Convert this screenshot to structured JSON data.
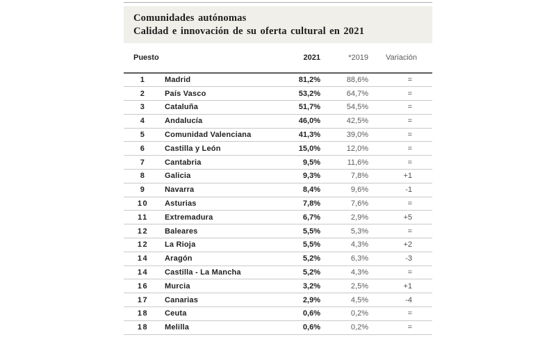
{
  "header": {
    "title_line1": "Comunidades autónomas",
    "title_line2": "Calidad e innovación de su oferta cultural en 2021"
  },
  "table": {
    "columns": {
      "puesto": "Puesto",
      "y2021": "2021",
      "y2019": "*2019",
      "variacion": "Variación"
    },
    "rows": [
      {
        "rank": "1",
        "name": "Madrid",
        "v2021": "81,2%",
        "v2019": "88,6%",
        "variation": "="
      },
      {
        "rank": "2",
        "name": "País Vasco",
        "v2021": "53,2%",
        "v2019": "64,7%",
        "variation": "="
      },
      {
        "rank": "3",
        "name": "Cataluña",
        "v2021": "51,7%",
        "v2019": "54,5%",
        "variation": "="
      },
      {
        "rank": "4",
        "name": "Andalucía",
        "v2021": "46,0%",
        "v2019": "42,5%",
        "variation": "="
      },
      {
        "rank": "5",
        "name": "Comunidad Valenciana",
        "v2021": "41,3%",
        "v2019": "39,0%",
        "variation": "="
      },
      {
        "rank": "6",
        "name": "Castilla y León",
        "v2021": "15,0%",
        "v2019": "12,0%",
        "variation": "="
      },
      {
        "rank": "7",
        "name": "Cantabria",
        "v2021": "9,5%",
        "v2019": "11,6%",
        "variation": "="
      },
      {
        "rank": "8",
        "name": "Galicia",
        "v2021": "9,3%",
        "v2019": "7,8%",
        "variation": "+1"
      },
      {
        "rank": "9",
        "name": "Navarra",
        "v2021": "8,4%",
        "v2019": "9,6%",
        "variation": "-1"
      },
      {
        "rank": "10",
        "name": "Asturias",
        "v2021": "7,8%",
        "v2019": "7,6%",
        "variation": "="
      },
      {
        "rank": "11",
        "name": "Extremadura",
        "v2021": "6,7%",
        "v2019": "2,9%",
        "variation": "+5"
      },
      {
        "rank": "12",
        "name": "Baleares",
        "v2021": "5,5%",
        "v2019": "5,3%",
        "variation": "="
      },
      {
        "rank": "12",
        "name": "La Rioja",
        "v2021": "5,5%",
        "v2019": "4,3%",
        "variation": "+2"
      },
      {
        "rank": "14",
        "name": "Aragón",
        "v2021": "5,2%",
        "v2019": "6,3%",
        "variation": "-3"
      },
      {
        "rank": "14",
        "name": "Castilla - La Mancha",
        "v2021": "5,2%",
        "v2019": "4,3%",
        "variation": "="
      },
      {
        "rank": "16",
        "name": "Murcia",
        "v2021": "3,2%",
        "v2019": "2,5%",
        "variation": "+1"
      },
      {
        "rank": "17",
        "name": "Canarias",
        "v2021": "2,9%",
        "v2019": "4,5%",
        "variation": "-4"
      },
      {
        "rank": "18",
        "name": "Ceuta",
        "v2021": "0,6%",
        "v2019": "0,2%",
        "variation": "="
      },
      {
        "rank": "18",
        "name": "Melilla",
        "v2021": "0,6%",
        "v2019": "0,2%",
        "variation": "="
      }
    ]
  },
  "chart_data": {
    "type": "table",
    "title": "Comunidades autónomas — Calidad e innovación de su oferta cultural en 2021",
    "columns": [
      "Puesto",
      "Comunidad",
      "2021",
      "*2019",
      "Variación"
    ],
    "rows": [
      [
        "1",
        "Madrid",
        "81,2%",
        "88,6%",
        "="
      ],
      [
        "2",
        "País Vasco",
        "53,2%",
        "64,7%",
        "="
      ],
      [
        "3",
        "Cataluña",
        "51,7%",
        "54,5%",
        "="
      ],
      [
        "4",
        "Andalucía",
        "46,0%",
        "42,5%",
        "="
      ],
      [
        "5",
        "Comunidad Valenciana",
        "41,3%",
        "39,0%",
        "="
      ],
      [
        "6",
        "Castilla y León",
        "15,0%",
        "12,0%",
        "="
      ],
      [
        "7",
        "Cantabria",
        "9,5%",
        "11,6%",
        "="
      ],
      [
        "8",
        "Galicia",
        "9,3%",
        "7,8%",
        "+1"
      ],
      [
        "9",
        "Navarra",
        "8,4%",
        "9,6%",
        "-1"
      ],
      [
        "10",
        "Asturias",
        "7,8%",
        "7,6%",
        "="
      ],
      [
        "11",
        "Extremadura",
        "6,7%",
        "2,9%",
        "+5"
      ],
      [
        "12",
        "Baleares",
        "5,5%",
        "5,3%",
        "="
      ],
      [
        "12",
        "La Rioja",
        "5,5%",
        "4,3%",
        "+2"
      ],
      [
        "14",
        "Aragón",
        "5,2%",
        "6,3%",
        "-3"
      ],
      [
        "14",
        "Castilla - La Mancha",
        "5,2%",
        "4,3%",
        "="
      ],
      [
        "16",
        "Murcia",
        "3,2%",
        "2,5%",
        "+1"
      ],
      [
        "17",
        "Canarias",
        "2,9%",
        "4,5%",
        "-4"
      ],
      [
        "18",
        "Ceuta",
        "0,6%",
        "0,2%",
        "="
      ],
      [
        "18",
        "Melilla",
        "0,6%",
        "0,2%",
        "="
      ]
    ],
    "values_2021": [
      81.2,
      53.2,
      51.7,
      46.0,
      41.3,
      15.0,
      9.5,
      9.3,
      8.4,
      7.8,
      6.7,
      5.5,
      5.5,
      5.2,
      5.2,
      3.2,
      2.9,
      0.6,
      0.6
    ],
    "values_2019": [
      88.6,
      64.7,
      54.5,
      42.5,
      39.0,
      12.0,
      11.6,
      7.8,
      9.6,
      7.6,
      2.9,
      5.3,
      4.3,
      6.3,
      4.3,
      2.5,
      4.5,
      0.2,
      0.2
    ]
  },
  "colors": {
    "title_background": "#f0efe9",
    "primary_text": "#1f1f1f",
    "muted_text": "#5a5a5a",
    "row_separator": "#c9c9c9",
    "header_rule": "#5c5c5c",
    "top_rule": "#ababab"
  }
}
